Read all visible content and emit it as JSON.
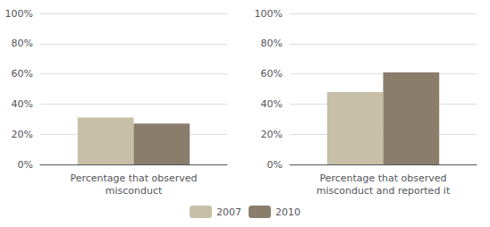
{
  "chart_data": [
    {
      "type": "bar",
      "categories": [
        "Percentage that observed\nmisconduct"
      ],
      "series": [
        {
          "name": "2007",
          "color": "#c8bfa8",
          "values": [
            0.31
          ]
        },
        {
          "name": "2010",
          "color": "#8b7d6b",
          "values": [
            0.27
          ]
        }
      ],
      "ylim": [
        0,
        1.0
      ],
      "yticks": [
        {
          "value": 0,
          "label": "0%"
        },
        {
          "value": 0.2,
          "label": "20%"
        },
        {
          "value": 0.4,
          "label": "40%"
        },
        {
          "value": 0.6,
          "label": "60%"
        },
        {
          "value": 0.8,
          "label": "80%"
        },
        {
          "value": 1.0,
          "label": "100%"
        }
      ],
      "grid": true,
      "legend": "bottom"
    },
    {
      "type": "bar",
      "categories": [
        "Percentage that observed\nmisconduct and reported it"
      ],
      "series": [
        {
          "name": "2007",
          "color": "#c8bfa8",
          "values": [
            0.48
          ]
        },
        {
          "name": "2010",
          "color": "#8b7d6b",
          "values": [
            0.61
          ]
        }
      ],
      "ylim": [
        0,
        1.0
      ],
      "yticks": [
        {
          "value": 0,
          "label": "0%"
        },
        {
          "value": 0.2,
          "label": "20%"
        },
        {
          "value": 0.4,
          "label": "40%"
        },
        {
          "value": 0.6,
          "label": "60%"
        },
        {
          "value": 0.8,
          "label": "80%"
        },
        {
          "value": 1.0,
          "label": "100%"
        }
      ],
      "grid": true,
      "legend": "bottom"
    }
  ]
}
